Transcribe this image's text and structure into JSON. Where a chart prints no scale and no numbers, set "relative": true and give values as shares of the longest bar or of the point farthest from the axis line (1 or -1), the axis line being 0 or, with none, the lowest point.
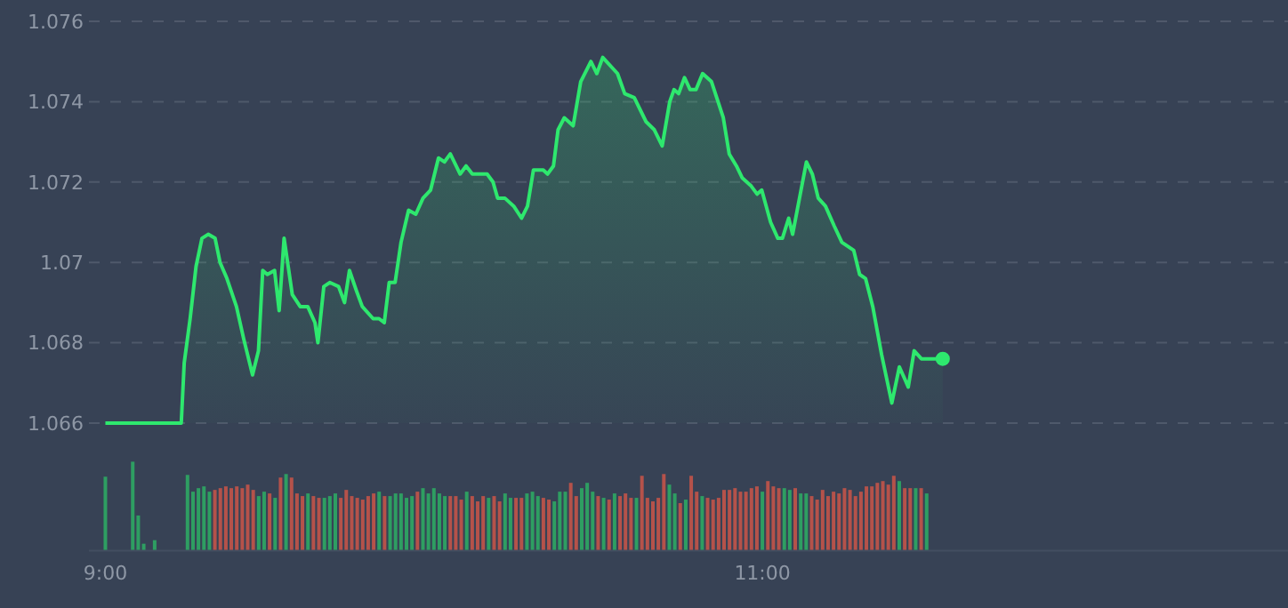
{
  "chart_data": [
    {
      "type": "area",
      "xlim": [
        8.95,
        12.6
      ],
      "ylim": [
        1.066,
        1.076
      ],
      "yticks": [
        1.066,
        1.068,
        1.07,
        1.072,
        1.074,
        1.076
      ],
      "grid": "y",
      "tick_labels": "y",
      "series": [
        {
          "color": "#2ee86e",
          "x": [
            9,
            9.231,
            9.24,
            9.258,
            9.276,
            9.294,
            9.313,
            9.334,
            9.349,
            9.37,
            9.399,
            9.421,
            9.448,
            9.466,
            9.479,
            9.493,
            9.515,
            9.529,
            9.544,
            9.569,
            9.593,
            9.616,
            9.638,
            9.647,
            9.665,
            9.683,
            9.71,
            9.728,
            9.743,
            9.764,
            9.782,
            9.815,
            9.833,
            9.849,
            9.864,
            9.882,
            9.9,
            9.923,
            9.945,
            9.967,
            9.99,
            10.014,
            10.032,
            10.05,
            10.08,
            10.098,
            10.117,
            10.162,
            10.18,
            10.194,
            10.216,
            10.243,
            10.267,
            10.285,
            10.303,
            10.333,
            10.346,
            10.364,
            10.378,
            10.397,
            10.424,
            10.447,
            10.478,
            10.496,
            10.514,
            10.559,
            10.581,
            10.61,
            10.646,
            10.671,
            10.695,
            10.718,
            10.731,
            10.745,
            10.763,
            10.78,
            10.798,
            10.818,
            10.845,
            10.881,
            10.899,
            10.921,
            10.939,
            10.966,
            10.984,
            10.998,
            11.025,
            11.047,
            11.061,
            11.08,
            11.092,
            11.134,
            11.152,
            11.17,
            11.192,
            11.219,
            11.242,
            11.278,
            11.296,
            11.314,
            11.336,
            11.363,
            11.394,
            11.417,
            11.444,
            11.462,
            11.484,
            11.517,
            11.549
          ],
          "values": [
            1.066,
            1.066,
            1.0675,
            1.0686,
            1.0699,
            1.0706,
            1.0707,
            1.0706,
            1.07,
            1.0696,
            1.0689,
            1.0681,
            1.0672,
            1.0678,
            1.0698,
            1.0697,
            1.0698,
            1.0688,
            1.0706,
            1.0692,
            1.0689,
            1.0689,
            1.0685,
            1.068,
            1.0694,
            1.0695,
            1.0694,
            1.069,
            1.0698,
            1.0693,
            1.0689,
            1.0686,
            1.0686,
            1.0685,
            1.0695,
            1.0695,
            1.0705,
            1.0713,
            1.0712,
            1.0716,
            1.0718,
            1.0726,
            1.0725,
            1.0727,
            1.0722,
            1.0724,
            1.0722,
            1.0722,
            1.072,
            1.0716,
            1.0716,
            1.0714,
            1.0711,
            1.0714,
            1.0723,
            1.0723,
            1.0722,
            1.0724,
            1.0733,
            1.0736,
            1.0734,
            1.0745,
            1.075,
            1.0747,
            1.0751,
            1.0747,
            1.0742,
            1.0741,
            1.0735,
            1.0733,
            1.0729,
            1.074,
            1.0743,
            1.0742,
            1.0746,
            1.0743,
            1.0743,
            1.0747,
            1.0745,
            1.0736,
            1.0727,
            1.0724,
            1.0721,
            1.0719,
            1.0717,
            1.0718,
            1.071,
            1.0706,
            1.0706,
            1.0711,
            1.0707,
            1.0725,
            1.0722,
            1.0716,
            1.0714,
            1.0709,
            1.0705,
            1.0703,
            1.0697,
            1.0696,
            1.0689,
            1.0677,
            1.0665,
            1.0674,
            1.0669,
            1.0678,
            1.0676,
            1.0676,
            1.0676
          ]
        },
        {
          "type": "scatter",
          "color": "#2ee86e",
          "x": [
            11.549
          ],
          "values": [
            1.0676
          ]
        }
      ]
    },
    {
      "type": "bar",
      "relative": true,
      "xlim": [
        8.95,
        12.6
      ],
      "xticks": [
        {
          "value": 9,
          "label": "9:00"
        },
        {
          "value": 11,
          "label": "11:00"
        }
      ],
      "tick_labels": "x",
      "x": [
        9,
        9.0833,
        9.1,
        9.1167,
        9.15,
        9.25,
        9.2667,
        9.2833,
        9.3,
        9.3167,
        9.3333,
        9.35,
        9.3667,
        9.3833,
        9.4,
        9.4167,
        9.4333,
        9.45,
        9.4667,
        9.4833,
        9.5,
        9.5167,
        9.5333,
        9.55,
        9.5667,
        9.5833,
        9.6,
        9.6167,
        9.6333,
        9.65,
        9.6667,
        9.6833,
        9.7,
        9.7167,
        9.7333,
        9.75,
        9.7667,
        9.7833,
        9.8,
        9.8167,
        9.8333,
        9.85,
        9.8667,
        9.8833,
        9.9,
        9.9167,
        9.9333,
        9.95,
        9.9667,
        9.9833,
        10,
        10.0167,
        10.0333,
        10.05,
        10.0667,
        10.0833,
        10.1,
        10.1167,
        10.1333,
        10.15,
        10.1667,
        10.1833,
        10.2,
        10.2167,
        10.2333,
        10.25,
        10.2667,
        10.2833,
        10.3,
        10.3167,
        10.3333,
        10.35,
        10.3667,
        10.3833,
        10.4,
        10.4167,
        10.4333,
        10.45,
        10.4667,
        10.4833,
        10.5,
        10.5167,
        10.5333,
        10.55,
        10.5667,
        10.5833,
        10.6,
        10.6167,
        10.6333,
        10.65,
        10.6667,
        10.6833,
        10.7,
        10.7167,
        10.7333,
        10.75,
        10.7667,
        10.7833,
        10.8,
        10.8167,
        10.8333,
        10.85,
        10.8667,
        10.8833,
        10.9,
        10.9167,
        10.9333,
        10.95,
        10.9667,
        10.9833,
        11,
        11.0167,
        11.0333,
        11.05,
        11.0667,
        11.0833,
        11.1,
        11.1167,
        11.1333,
        11.15,
        11.1667,
        11.1833,
        11.2,
        11.2167,
        11.2333,
        11.25,
        11.2667,
        11.2833,
        11.3,
        11.3167,
        11.3333,
        11.35,
        11.3667,
        11.3833,
        11.4,
        11.4167,
        11.4333,
        11.45,
        11.4667,
        11.4833,
        11.5
      ],
      "values": [
        0.83,
        1,
        0.39,
        0.07,
        0.11,
        0.85,
        0.66,
        0.7,
        0.72,
        0.66,
        0.68,
        0.7,
        0.72,
        0.7,
        0.72,
        0.7,
        0.74,
        0.68,
        0.61,
        0.66,
        0.64,
        0.59,
        0.82,
        0.86,
        0.82,
        0.64,
        0.61,
        0.64,
        0.61,
        0.59,
        0.59,
        0.61,
        0.64,
        0.59,
        0.68,
        0.61,
        0.59,
        0.57,
        0.61,
        0.64,
        0.66,
        0.61,
        0.61,
        0.64,
        0.64,
        0.59,
        0.61,
        0.66,
        0.7,
        0.64,
        0.7,
        0.64,
        0.61,
        0.61,
        0.61,
        0.57,
        0.66,
        0.61,
        0.55,
        0.61,
        0.59,
        0.61,
        0.55,
        0.64,
        0.59,
        0.59,
        0.59,
        0.64,
        0.66,
        0.61,
        0.59,
        0.57,
        0.55,
        0.66,
        0.66,
        0.76,
        0.61,
        0.7,
        0.76,
        0.66,
        0.61,
        0.59,
        0.57,
        0.64,
        0.61,
        0.64,
        0.59,
        0.59,
        0.84,
        0.59,
        0.55,
        0.59,
        0.86,
        0.74,
        0.64,
        0.53,
        0.57,
        0.84,
        0.66,
        0.61,
        0.59,
        0.57,
        0.59,
        0.68,
        0.68,
        0.7,
        0.66,
        0.66,
        0.7,
        0.72,
        0.66,
        0.78,
        0.72,
        0.7,
        0.7,
        0.68,
        0.7,
        0.64,
        0.64,
        0.61,
        0.57,
        0.68,
        0.61,
        0.66,
        0.64,
        0.7,
        0.68,
        0.61,
        0.66,
        0.72,
        0.72,
        0.76,
        0.78,
        0.74,
        0.84,
        0.78,
        0.7,
        0.7,
        0.7,
        0.7,
        0.64
      ],
      "colors": [
        "#2e9e62",
        "#2e9e62",
        "#2e9e62",
        "#2e9e62",
        "#2e9e62",
        "#2e9e62",
        "#2e9e62",
        "#2e9e62",
        "#2e9e62",
        "#2e9e62",
        "#b5524a",
        "#b5524a",
        "#b5524a",
        "#b5524a",
        "#b5524a",
        "#b5524a",
        "#b5524a",
        "#b5524a",
        "#2e9e62",
        "#2e9e62",
        "#b5524a",
        "#2e9e62",
        "#b5524a",
        "#2e9e62",
        "#b5524a",
        "#b5524a",
        "#b5524a",
        "#2e9e62",
        "#b5524a",
        "#b5524a",
        "#2e9e62",
        "#2e9e62",
        "#2e9e62",
        "#b5524a",
        "#b5524a",
        "#b5524a",
        "#b5524a",
        "#b5524a",
        "#b5524a",
        "#b5524a",
        "#2e9e62",
        "#b5524a",
        "#2e9e62",
        "#2e9e62",
        "#2e9e62",
        "#2e9e62",
        "#2e9e62",
        "#b5524a",
        "#2e9e62",
        "#2e9e62",
        "#2e9e62",
        "#2e9e62",
        "#2e9e62",
        "#b5524a",
        "#b5524a",
        "#b5524a",
        "#2e9e62",
        "#b5524a",
        "#b5524a",
        "#b5524a",
        "#2e9e62",
        "#b5524a",
        "#b5524a",
        "#2e9e62",
        "#2e9e62",
        "#b5524a",
        "#b5524a",
        "#2e9e62",
        "#2e9e62",
        "#2e9e62",
        "#b5524a",
        "#b5524a",
        "#2e9e62",
        "#2e9e62",
        "#2e9e62",
        "#b5524a",
        "#b5524a",
        "#2e9e62",
        "#2e9e62",
        "#2e9e62",
        "#b5524a",
        "#2e9e62",
        "#b5524a",
        "#2e9e62",
        "#b5524a",
        "#b5524a",
        "#b5524a",
        "#2e9e62",
        "#b5524a",
        "#b5524a",
        "#b5524a",
        "#b5524a",
        "#b5524a",
        "#2e9e62",
        "#2e9e62",
        "#b5524a",
        "#2e9e62",
        "#b5524a",
        "#b5524a",
        "#2e9e62",
        "#b5524a",
        "#b5524a",
        "#b5524a",
        "#b5524a",
        "#b5524a",
        "#b5524a",
        "#b5524a",
        "#b5524a",
        "#b5524a",
        "#b5524a",
        "#2e9e62",
        "#b5524a",
        "#b5524a",
        "#b5524a",
        "#2e9e62",
        "#2e9e62",
        "#b5524a",
        "#2e9e62",
        "#2e9e62",
        "#b5524a",
        "#b5524a",
        "#b5524a",
        "#b5524a",
        "#b5524a",
        "#b5524a",
        "#b5524a",
        "#b5524a",
        "#b5524a",
        "#b5524a",
        "#b5524a",
        "#b5524a",
        "#b5524a",
        "#b5524a",
        "#b5524a",
        "#b5524a",
        "#2e9e62",
        "#b5524a",
        "#b5524a",
        "#2e9e62",
        "#b5524a",
        "#2e9e62"
      ]
    }
  ]
}
